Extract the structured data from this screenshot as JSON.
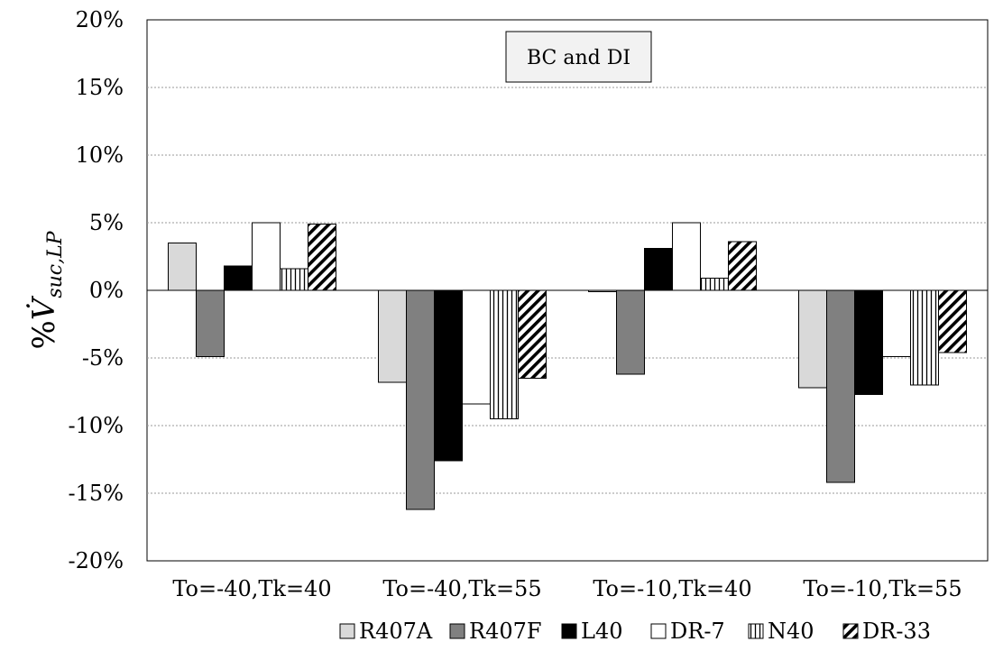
{
  "chart_data": {
    "type": "bar",
    "title": "",
    "ylabel": {
      "prefix": "%",
      "symbol": "V̇",
      "subscript": "suc,LP"
    },
    "xlabel": "",
    "ylim": [
      -20,
      20
    ],
    "ytick_step": 5,
    "yticks": [
      "20%",
      "15%",
      "10%",
      "5%",
      "0%",
      "-5%",
      "-10%",
      "-15%",
      "-20%"
    ],
    "grid": true,
    "legend_position": "bottom",
    "annotation": "BC and DI",
    "categories": [
      "To=-40,Tk=40",
      "To=-40,Tk=55",
      "To=-10,Tk=40",
      "To=-10,Tk=55"
    ],
    "series": [
      {
        "name": "R407A",
        "fill": "#d9d9d9",
        "pattern": "none",
        "values": [
          3.5,
          -6.8,
          -0.1,
          -7.2
        ]
      },
      {
        "name": "R407F",
        "fill": "#808080",
        "pattern": "none",
        "values": [
          -4.9,
          -16.2,
          -6.2,
          -14.2
        ]
      },
      {
        "name": "L40",
        "fill": "#000000",
        "pattern": "none",
        "values": [
          1.8,
          -12.6,
          3.1,
          -7.7
        ]
      },
      {
        "name": "DR-7",
        "fill": "#ffffff",
        "pattern": "none",
        "values": [
          5.0,
          -8.4,
          5.0,
          -4.9
        ]
      },
      {
        "name": "N40",
        "fill": "#ffffff",
        "pattern": "vertical-lines",
        "values": [
          1.6,
          -9.5,
          0.9,
          -7.0
        ]
      },
      {
        "name": "DR-33",
        "fill": "#ffffff",
        "pattern": "diagonal-hatch",
        "values": [
          4.9,
          -6.5,
          3.6,
          -4.6
        ]
      }
    ]
  }
}
